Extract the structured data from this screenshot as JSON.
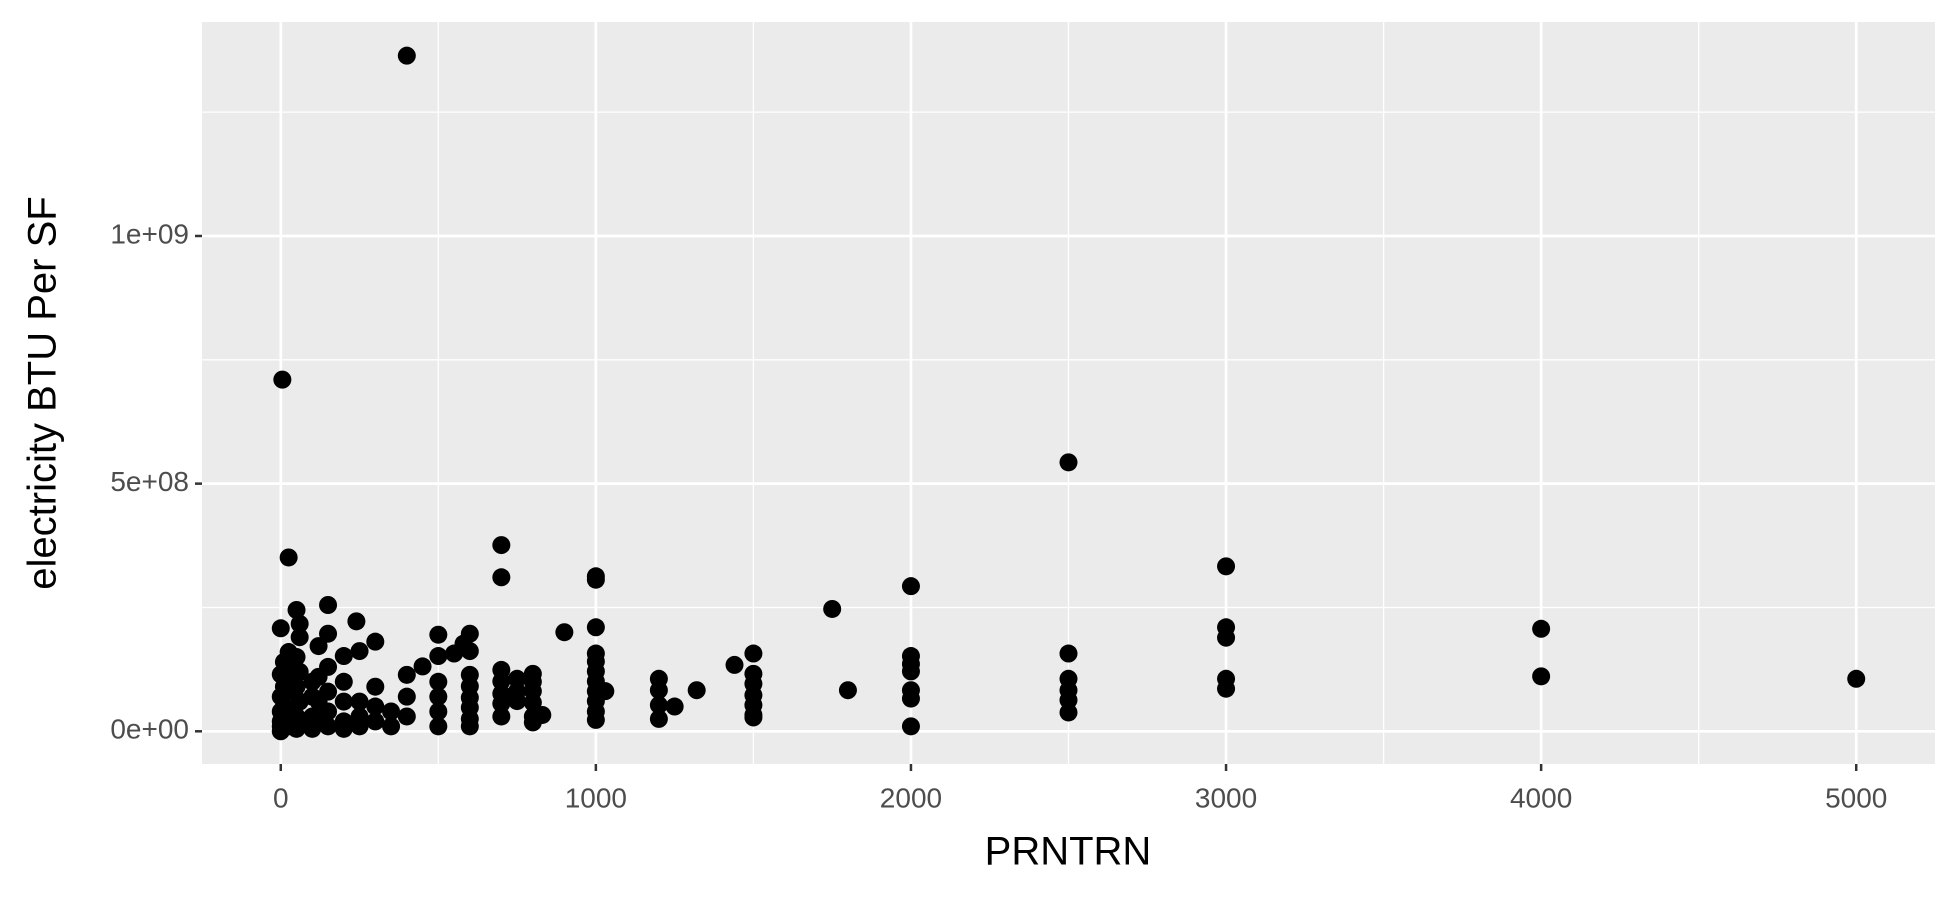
{
  "chart_data": {
    "type": "scatter",
    "x_label": "PRNTRN",
    "y_label": "electricity BTU Per SF",
    "color": "#000000",
    "grid": true,
    "xlim": [
      -250,
      5250
    ],
    "ylim": [
      -66000000,
      1432000000
    ],
    "xticks": [
      0,
      1000,
      2000,
      3000,
      4000,
      5000
    ],
    "yticks": [
      {
        "value": 0,
        "label": "0e+00"
      },
      {
        "value": 500000000,
        "label": "5e+08"
      },
      {
        "value": 1000000000,
        "label": "1e+09"
      }
    ],
    "x_minor_gridlines": [
      500,
      1500,
      2500,
      3500,
      4500
    ],
    "y_minor_gridlines": [
      250000000,
      750000000,
      1250000000
    ],
    "x": [
      400,
      5,
      25,
      2500,
      700,
      700,
      1000,
      1000,
      2000,
      3000,
      1750,
      4000,
      4000,
      5000,
      3000,
      3000,
      3000,
      3000,
      2500,
      2500,
      2500,
      2500,
      2500,
      2000,
      2000,
      2000,
      2000,
      2000,
      2000,
      1800,
      1500,
      1500,
      1500,
      1500,
      1500,
      1500,
      1500,
      1440,
      1320,
      1250,
      1200,
      1200,
      1200,
      1200,
      1030,
      1000,
      1000,
      1000,
      1000,
      1000,
      1000,
      1000,
      1000,
      1000,
      900,
      830,
      800,
      800,
      800,
      800,
      800,
      800,
      750,
      750,
      750,
      700,
      700,
      700,
      700,
      700,
      600,
      600,
      600,
      600,
      600,
      600,
      600,
      600,
      580,
      550,
      500,
      500,
      500,
      500,
      500,
      500,
      450,
      400,
      400,
      400,
      350,
      350,
      300,
      300,
      300,
      300,
      250,
      250,
      250,
      250,
      240,
      200,
      200,
      200,
      200,
      200,
      150,
      150,
      150,
      150,
      150,
      150,
      120,
      120,
      120,
      120,
      100,
      100,
      100,
      100,
      60,
      60,
      60,
      60,
      60,
      50,
      50,
      50,
      50,
      50,
      25,
      25,
      25,
      25,
      25,
      10,
      10,
      10,
      10,
      0,
      0,
      0,
      0,
      0,
      0,
      0
    ],
    "values": [
      1364000000,
      710000000,
      351000000,
      543000000,
      376000000,
      311000000,
      313000000,
      306000000,
      293000000,
      333000000,
      247000000,
      207000000,
      111000000,
      106000000,
      210000000,
      189000000,
      106000000,
      86000000,
      157000000,
      106000000,
      83000000,
      63000000,
      38000000,
      152000000,
      136000000,
      121000000,
      83000000,
      66000000,
      10000000,
      83000000,
      157000000,
      116000000,
      96000000,
      73000000,
      53000000,
      33000000,
      28000000,
      134000000,
      83000000,
      50000000,
      106000000,
      83000000,
      53000000,
      25000000,
      81000000,
      210000000,
      157000000,
      141000000,
      121000000,
      101000000,
      81000000,
      61000000,
      40000000,
      23000000,
      200000000,
      33000000,
      116000000,
      100000000,
      81000000,
      58000000,
      30000000,
      18000000,
      106000000,
      81000000,
      61000000,
      124000000,
      101000000,
      76000000,
      56000000,
      30000000,
      197000000,
      162000000,
      114000000,
      91000000,
      68000000,
      48000000,
      25000000,
      10000000,
      177000000,
      157000000,
      195000000,
      152000000,
      100000000,
      70000000,
      40000000,
      10000000,
      131000000,
      114000000,
      70000000,
      30000000,
      40000000,
      10000000,
      181000000,
      90000000,
      50000000,
      20000000,
      162000000,
      60000000,
      30000000,
      10000000,
      222000000,
      152000000,
      100000000,
      60000000,
      20000000,
      5000000,
      255000000,
      197000000,
      130000000,
      80000000,
      40000000,
      10000000,
      172000000,
      110000000,
      60000000,
      20000000,
      100000000,
      70000000,
      30000000,
      5000000,
      217000000,
      190000000,
      120000000,
      60000000,
      20000000,
      245000000,
      150000000,
      90000000,
      30000000,
      5000000,
      160000000,
      120000000,
      80000000,
      40000000,
      10000000,
      140000000,
      90000000,
      50000000,
      20000000,
      208000000,
      115000000,
      70000000,
      40000000,
      20000000,
      10000000,
      0
    ]
  }
}
